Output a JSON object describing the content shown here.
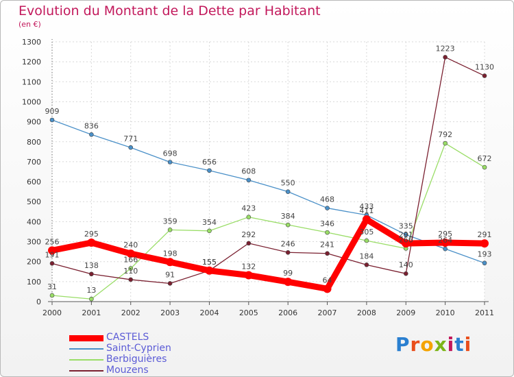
{
  "chart_data": {
    "type": "line",
    "title": "Evolution du Montant de la Dette par Habitant",
    "subtitle": "(en €)",
    "categories": [
      "2000",
      "2001",
      "2002",
      "2003",
      "2004",
      "2005",
      "2006",
      "2007",
      "2008",
      "2009",
      "2010",
      "2011"
    ],
    "ylim": [
      0,
      1300
    ],
    "yticks": [
      0,
      100,
      200,
      300,
      400,
      500,
      600,
      700,
      800,
      900,
      1000,
      1100,
      1200,
      1300
    ],
    "grid": true,
    "legend_position": "bottom-left",
    "series": [
      {
        "name": "CASTELS",
        "color": "#ff0000",
        "values": [
          256,
          295,
          240,
          198,
          155,
          132,
          99,
          64,
          411,
          291,
          295,
          291
        ]
      },
      {
        "name": "Saint-Cyprien",
        "color": "#4a90c8",
        "values": [
          909,
          836,
          771,
          698,
          656,
          608,
          550,
          468,
          433,
          335,
          264,
          193
        ]
      },
      {
        "name": "Berbiguières",
        "color": "#99dd66",
        "values": [
          31,
          13,
          166,
          359,
          354,
          423,
          384,
          346,
          305,
          266,
          792,
          672
        ]
      },
      {
        "name": "Mouzens",
        "color": "#7a2030",
        "values": [
          191,
          138,
          110,
          91,
          155,
          292,
          246,
          241,
          184,
          140,
          1223,
          1130
        ]
      }
    ]
  },
  "logo_text": "Proxiti"
}
